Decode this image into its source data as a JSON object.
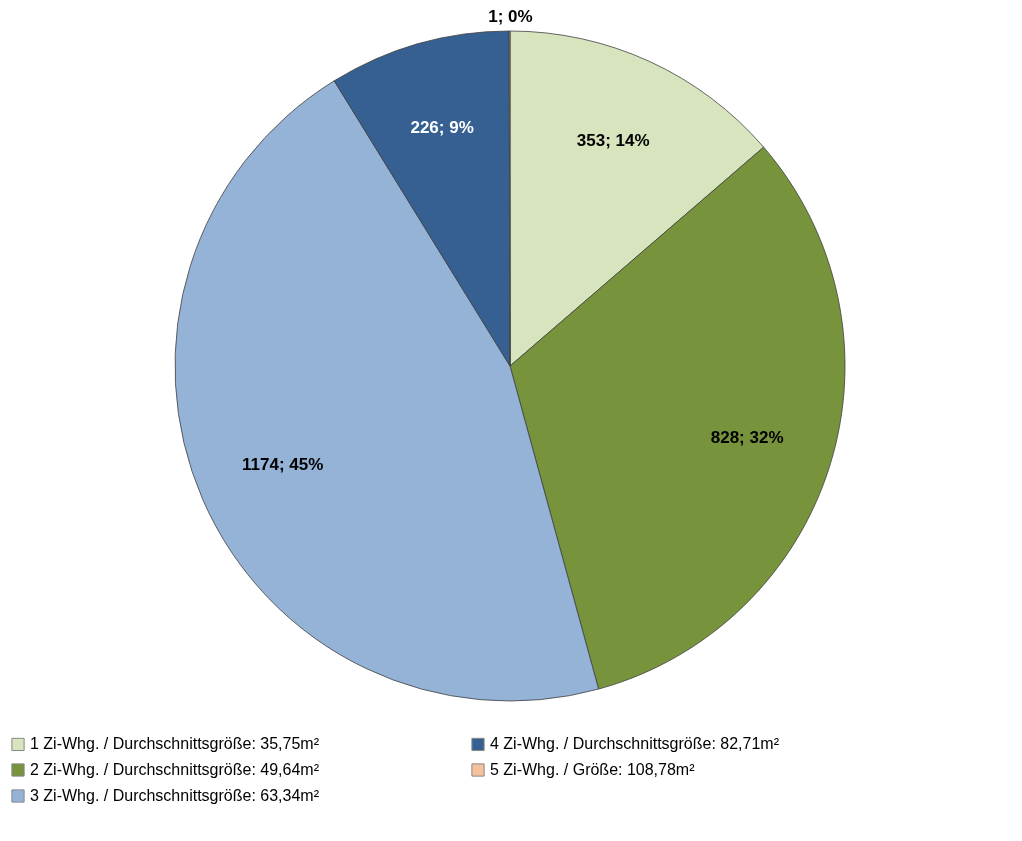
{
  "chart_data": {
    "type": "pie",
    "categories": [
      "1 Zi-Whg. / Durchschnittsgröße: 35,75m²",
      "2 Zi-Whg. / Durchschnittsgröße: 49,64m²",
      "3 Zi-Whg. / Durchschnittsgröße: 63,34m²",
      "4 Zi-Whg. / Durchschnittsgröße: 82,71m²",
      "5 Zi-Whg. / Größe: 108,78m²"
    ],
    "values": [
      353,
      828,
      1174,
      226,
      1
    ],
    "value_labels": [
      "353; 14%",
      "828; 32%",
      "1174; 45%",
      "226; 9%",
      "1; 0%"
    ],
    "colors": [
      "#d7e4bd",
      "#77933c",
      "#95b3d7",
      "#376092",
      "#f5c29c"
    ],
    "legend": "bottom"
  }
}
